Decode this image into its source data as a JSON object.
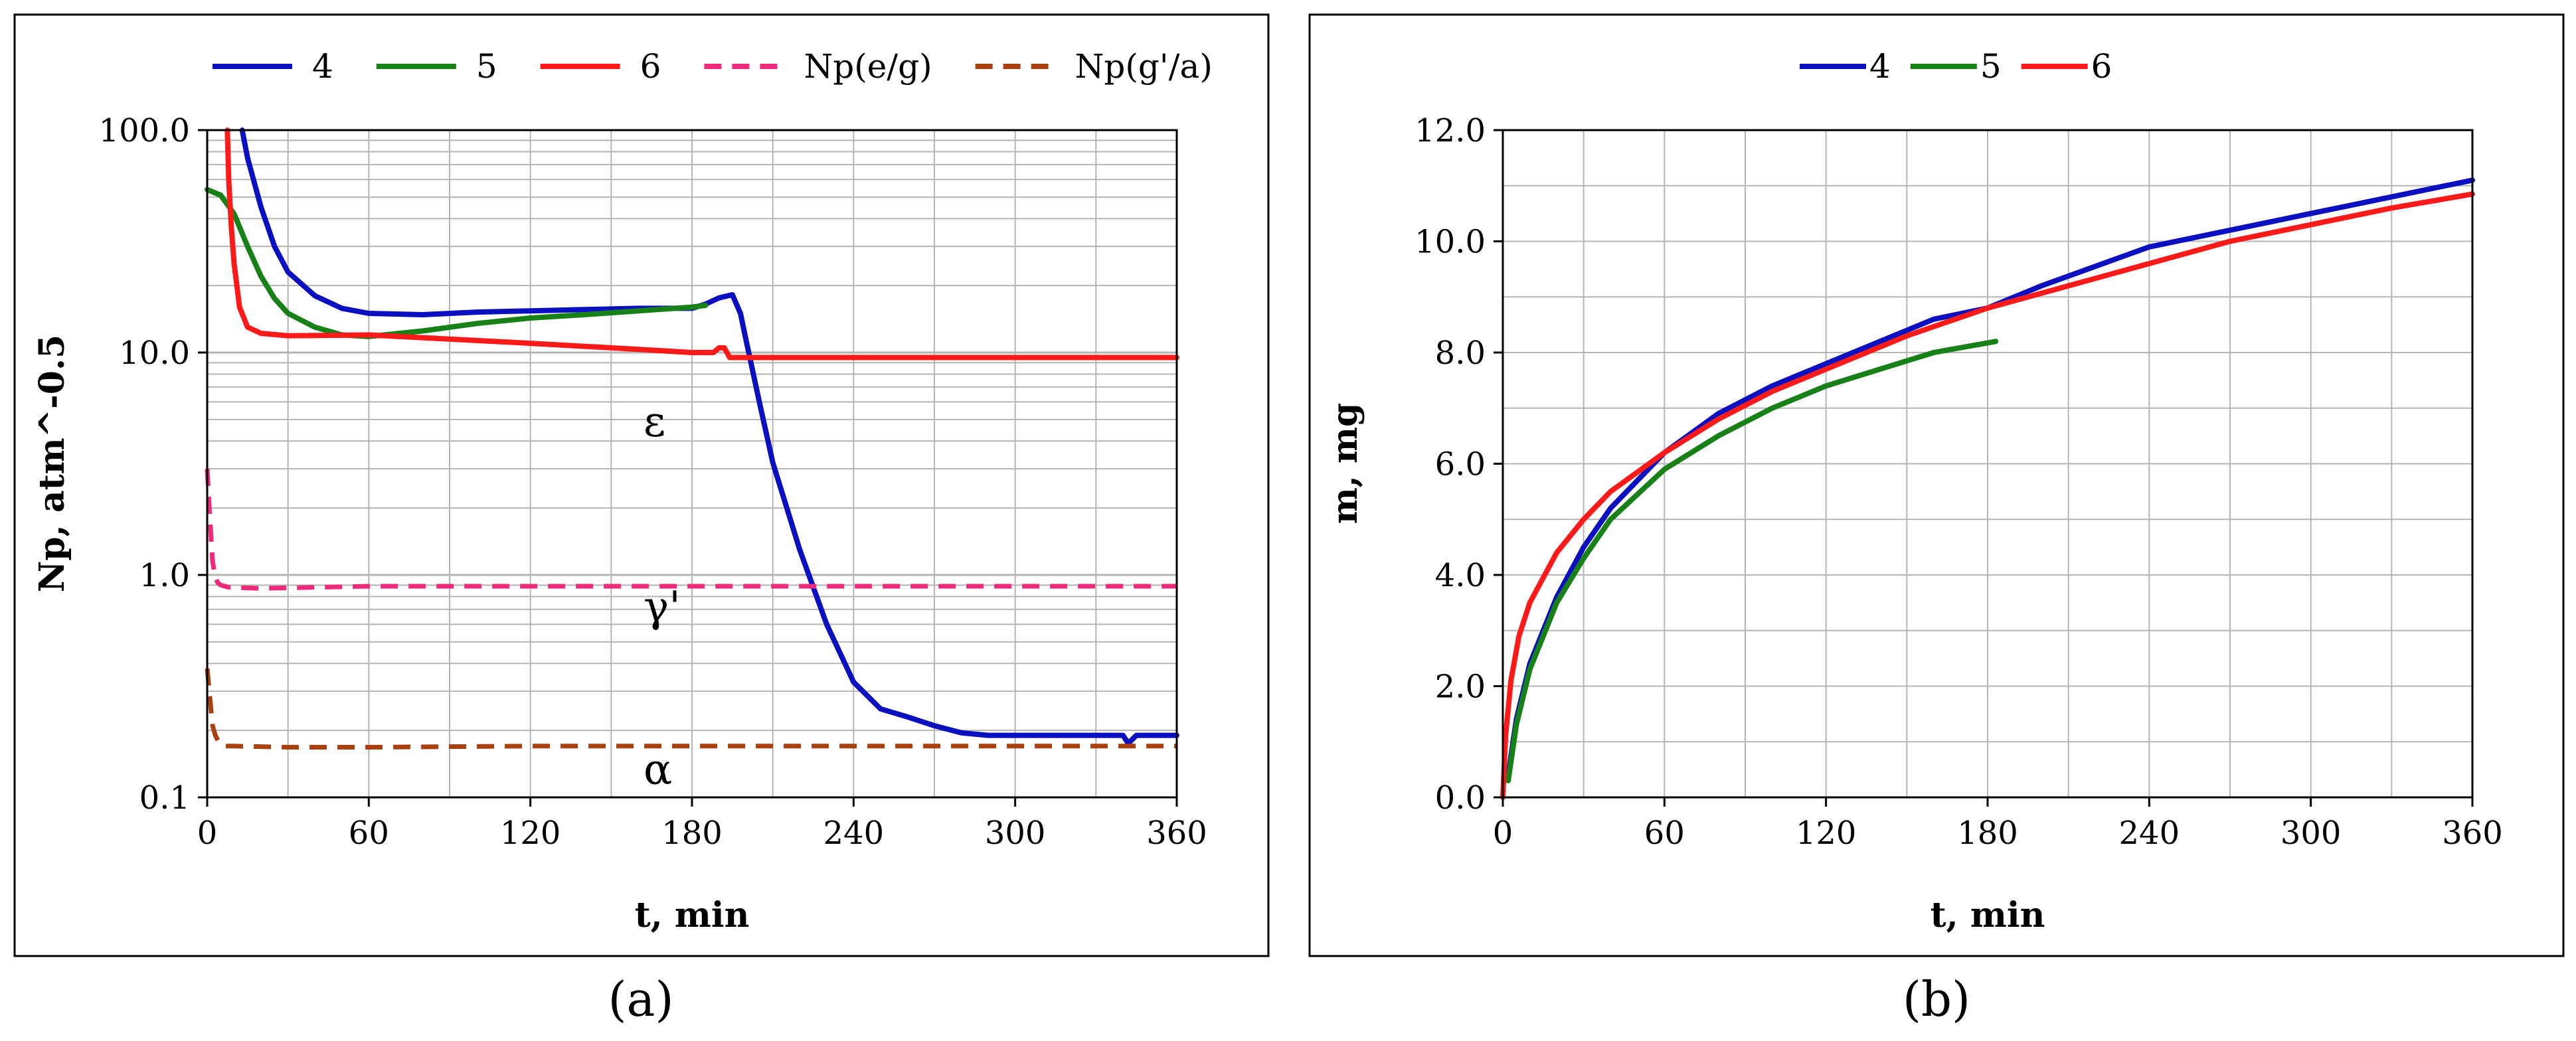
{
  "captions": {
    "a": "(a)",
    "b": "(b)"
  },
  "chart_data": [
    {
      "type": "line",
      "id": "a",
      "xlabel": "t, min",
      "ylabel": "Np, atm^-0.5",
      "yscale": "log",
      "xlim": [
        0,
        360
      ],
      "ylim": [
        0.1,
        100
      ],
      "xticks": [
        0,
        60,
        120,
        180,
        240,
        300,
        360
      ],
      "xtick_labels": [
        "0",
        "60",
        "120",
        "180",
        "240",
        "300",
        "360"
      ],
      "yticks": [
        0.1,
        1,
        10,
        100
      ],
      "ytick_labels": [
        "0.1",
        "1.0",
        "10.0",
        "100.0"
      ],
      "grid": true,
      "legend": "top",
      "annotations": [
        {
          "text": "ε",
          "x": 162,
          "y": 4.2
        },
        {
          "text": "γ'",
          "x": 162,
          "y": 0.62
        },
        {
          "text": "α",
          "x": 162,
          "y": 0.115
        }
      ],
      "series": [
        {
          "name": "4",
          "color": "#0a10c0",
          "dash": "solid",
          "x": [
            13,
            15,
            20,
            25,
            30,
            40,
            50,
            60,
            80,
            100,
            120,
            140,
            160,
            180,
            185,
            190,
            195,
            198,
            200,
            205,
            210,
            220,
            230,
            240,
            250,
            260,
            270,
            280,
            290,
            300,
            320,
            340,
            342,
            345,
            350,
            360
          ],
          "y": [
            100,
            75,
            45,
            30,
            23,
            18,
            15.8,
            15,
            14.8,
            15.2,
            15.4,
            15.6,
            15.8,
            15.8,
            16.5,
            17.6,
            18.2,
            15,
            11.5,
            6,
            3.2,
            1.3,
            0.6,
            0.33,
            0.25,
            0.23,
            0.21,
            0.195,
            0.19,
            0.19,
            0.19,
            0.19,
            0.175,
            0.19,
            0.19,
            0.19
          ]
        },
        {
          "name": "5",
          "color": "#178017",
          "dash": "solid",
          "x": [
            0,
            5,
            10,
            15,
            20,
            25,
            30,
            40,
            50,
            60,
            80,
            100,
            120,
            140,
            160,
            180,
            185
          ],
          "y": [
            54,
            51,
            42,
            30,
            22,
            17.5,
            15,
            13,
            12,
            11.8,
            12.5,
            13.5,
            14.3,
            14.8,
            15.4,
            16,
            16.3
          ]
        },
        {
          "name": "6",
          "color": "#ff1a1a",
          "dash": "solid",
          "x": [
            7.5,
            8,
            9,
            10,
            12,
            15,
            20,
            30,
            60,
            90,
            120,
            150,
            180,
            188,
            190,
            192,
            194,
            200,
            240,
            300,
            360
          ],
          "y": [
            100,
            60,
            36,
            25,
            16,
            13,
            12.2,
            11.9,
            12,
            11.5,
            11,
            10.5,
            10,
            10,
            10.5,
            10.5,
            9.5,
            9.5,
            9.5,
            9.5,
            9.5
          ]
        },
        {
          "name": "Np(e/g)",
          "color": "#ee2a7b",
          "dash": "dashed",
          "x": [
            0,
            1,
            2,
            3,
            4,
            5,
            8,
            20,
            60,
            120,
            180,
            240,
            300,
            360
          ],
          "y": [
            3,
            1.8,
            1.15,
            0.97,
            0.92,
            0.9,
            0.88,
            0.87,
            0.89,
            0.89,
            0.89,
            0.89,
            0.89,
            0.89
          ]
        },
        {
          "name": "Np(g'/a)",
          "color": "#a8400f",
          "dash": "dashed",
          "x": [
            0,
            1,
            2,
            3,
            4,
            6,
            10,
            30,
            60,
            120,
            180,
            240,
            300,
            360
          ],
          "y": [
            0.38,
            0.28,
            0.21,
            0.19,
            0.18,
            0.17,
            0.17,
            0.168,
            0.168,
            0.17,
            0.17,
            0.17,
            0.17,
            0.17
          ]
        }
      ]
    },
    {
      "type": "line",
      "id": "b",
      "xlabel": "t, min",
      "ylabel": "m, mg",
      "xlim": [
        0,
        360
      ],
      "ylim": [
        0,
        12
      ],
      "xticks": [
        0,
        60,
        120,
        180,
        240,
        300,
        360
      ],
      "xtick_labels": [
        "0",
        "60",
        "120",
        "180",
        "240",
        "300",
        "360"
      ],
      "yticks": [
        0,
        2,
        4,
        6,
        8,
        10,
        12
      ],
      "ytick_labels": [
        "0.0",
        "2.0",
        "4.0",
        "6.0",
        "8.0",
        "10.0",
        "12.0"
      ],
      "grid": true,
      "legend": "top",
      "series": [
        {
          "name": "4",
          "color": "#0a10c0",
          "dash": "solid",
          "x": [
            2,
            5,
            10,
            20,
            30,
            40,
            60,
            80,
            100,
            120,
            140,
            160,
            170,
            180,
            200,
            240,
            300,
            360
          ],
          "y": [
            0.4,
            1.4,
            2.4,
            3.6,
            4.5,
            5.2,
            6.2,
            6.9,
            7.4,
            7.8,
            8.2,
            8.6,
            8.7,
            8.8,
            9.2,
            9.9,
            10.5,
            11.1
          ]
        },
        {
          "name": "5",
          "color": "#178017",
          "dash": "solid",
          "x": [
            2,
            5,
            10,
            20,
            30,
            40,
            60,
            80,
            100,
            120,
            140,
            160,
            183
          ],
          "y": [
            0.3,
            1.3,
            2.3,
            3.5,
            4.3,
            5,
            5.9,
            6.5,
            7,
            7.4,
            7.7,
            8,
            8.2
          ]
        },
        {
          "name": "6",
          "color": "#ff1a1a",
          "dash": "solid",
          "x": [
            0,
            1,
            3,
            6,
            10,
            20,
            30,
            40,
            60,
            80,
            100,
            120,
            150,
            180,
            210,
            240,
            270,
            300,
            330,
            360
          ],
          "y": [
            0,
            1.1,
            2.1,
            2.9,
            3.5,
            4.4,
            5,
            5.5,
            6.2,
            6.8,
            7.3,
            7.7,
            8.3,
            8.8,
            9.2,
            9.6,
            10,
            10.3,
            10.6,
            10.85
          ]
        }
      ]
    }
  ]
}
